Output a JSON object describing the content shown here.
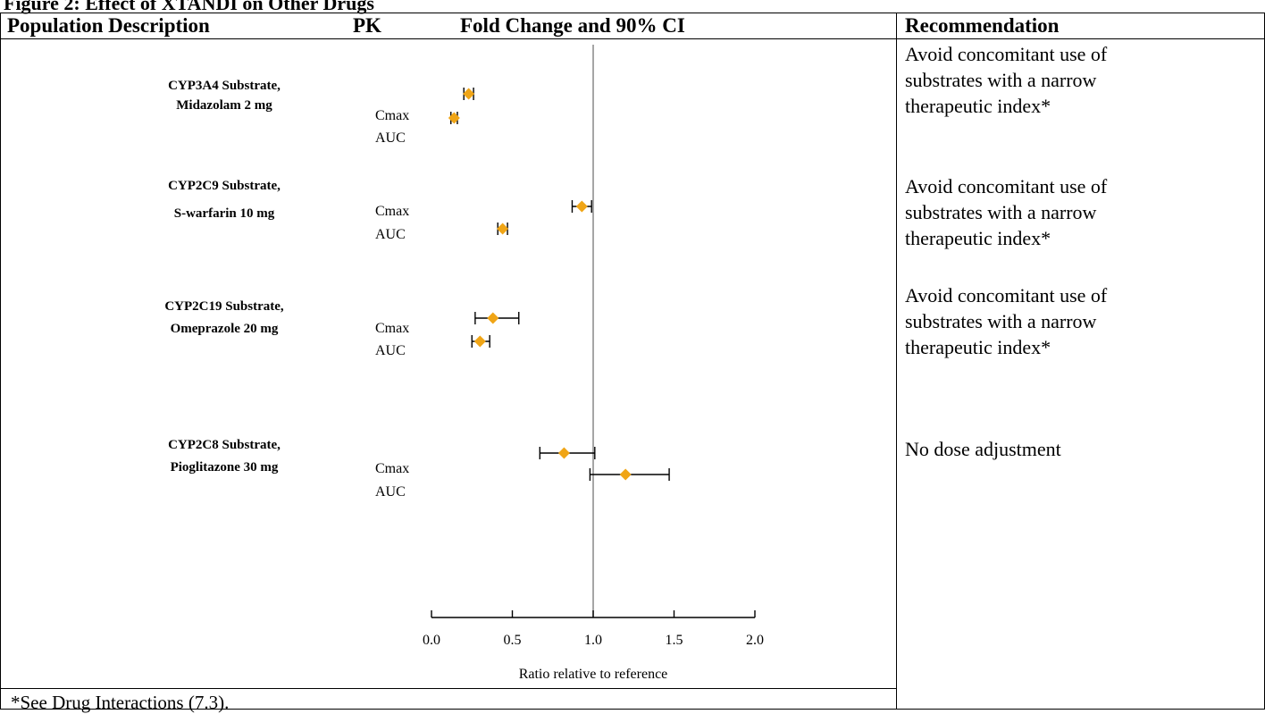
{
  "figure_caption": "Figure 2: Effect of XTANDI on Other Drugs",
  "headers": {
    "population": "Population Description",
    "pk": "PK",
    "fold_change": "Fold Change and 90% CI",
    "recommendation": "Recommendation"
  },
  "recommendations": [
    {
      "line1": "Avoid concomitant use of",
      "line2": "substrates with a narrow",
      "line3": "therapeutic index*"
    },
    {
      "line1": "Avoid concomitant use of",
      "line2": "substrates with a narrow",
      "line3": "therapeutic index*"
    },
    {
      "line1": "Avoid concomitant use of",
      "line2": "substrates with a narrow",
      "line3": "therapeutic index*"
    },
    {
      "line1": "No dose adjustment",
      "line2": "",
      "line3": ""
    }
  ],
  "footnote": "*See Drug Interactions (7.3).",
  "colors": {
    "marker": "#f0a516",
    "reference_line": "#888888",
    "error_bar": "#000000"
  },
  "chart_data": {
    "type": "forest",
    "xlabel": "Ratio relative to reference",
    "xlim": [
      0.0,
      2.0
    ],
    "xticks": [
      "0.0",
      "0.5",
      "1.0",
      "1.5",
      "2.0"
    ],
    "reference_value": 1.0,
    "groups": [
      {
        "line1": "CYP3A4 Substrate,",
        "line2": "Midazolam 2 mg",
        "rows": [
          {
            "pk": "Cmax",
            "value": 0.23,
            "lo": 0.2,
            "hi": 0.26
          },
          {
            "pk": "AUC",
            "value": 0.14,
            "lo": 0.12,
            "hi": 0.16
          }
        ]
      },
      {
        "line1": "CYP2C9 Substrate,",
        "line2": "S-warfarin 10 mg",
        "rows": [
          {
            "pk": "Cmax",
            "value": 0.93,
            "lo": 0.87,
            "hi": 0.99
          },
          {
            "pk": "AUC",
            "value": 0.44,
            "lo": 0.41,
            "hi": 0.47
          }
        ]
      },
      {
        "line1": "CYP2C19 Substrate,",
        "line2": "Omeprazole 20 mg",
        "rows": [
          {
            "pk": "Cmax",
            "value": 0.38,
            "lo": 0.27,
            "hi": 0.54
          },
          {
            "pk": "AUC",
            "value": 0.3,
            "lo": 0.25,
            "hi": 0.36
          }
        ]
      },
      {
        "line1": "CYP2C8 Substrate,",
        "line2": "Pioglitazone 30 mg",
        "rows": [
          {
            "pk": "Cmax",
            "value": 0.82,
            "lo": 0.67,
            "hi": 1.01
          },
          {
            "pk": "AUC",
            "value": 1.2,
            "lo": 0.98,
            "hi": 1.47
          }
        ]
      }
    ]
  }
}
